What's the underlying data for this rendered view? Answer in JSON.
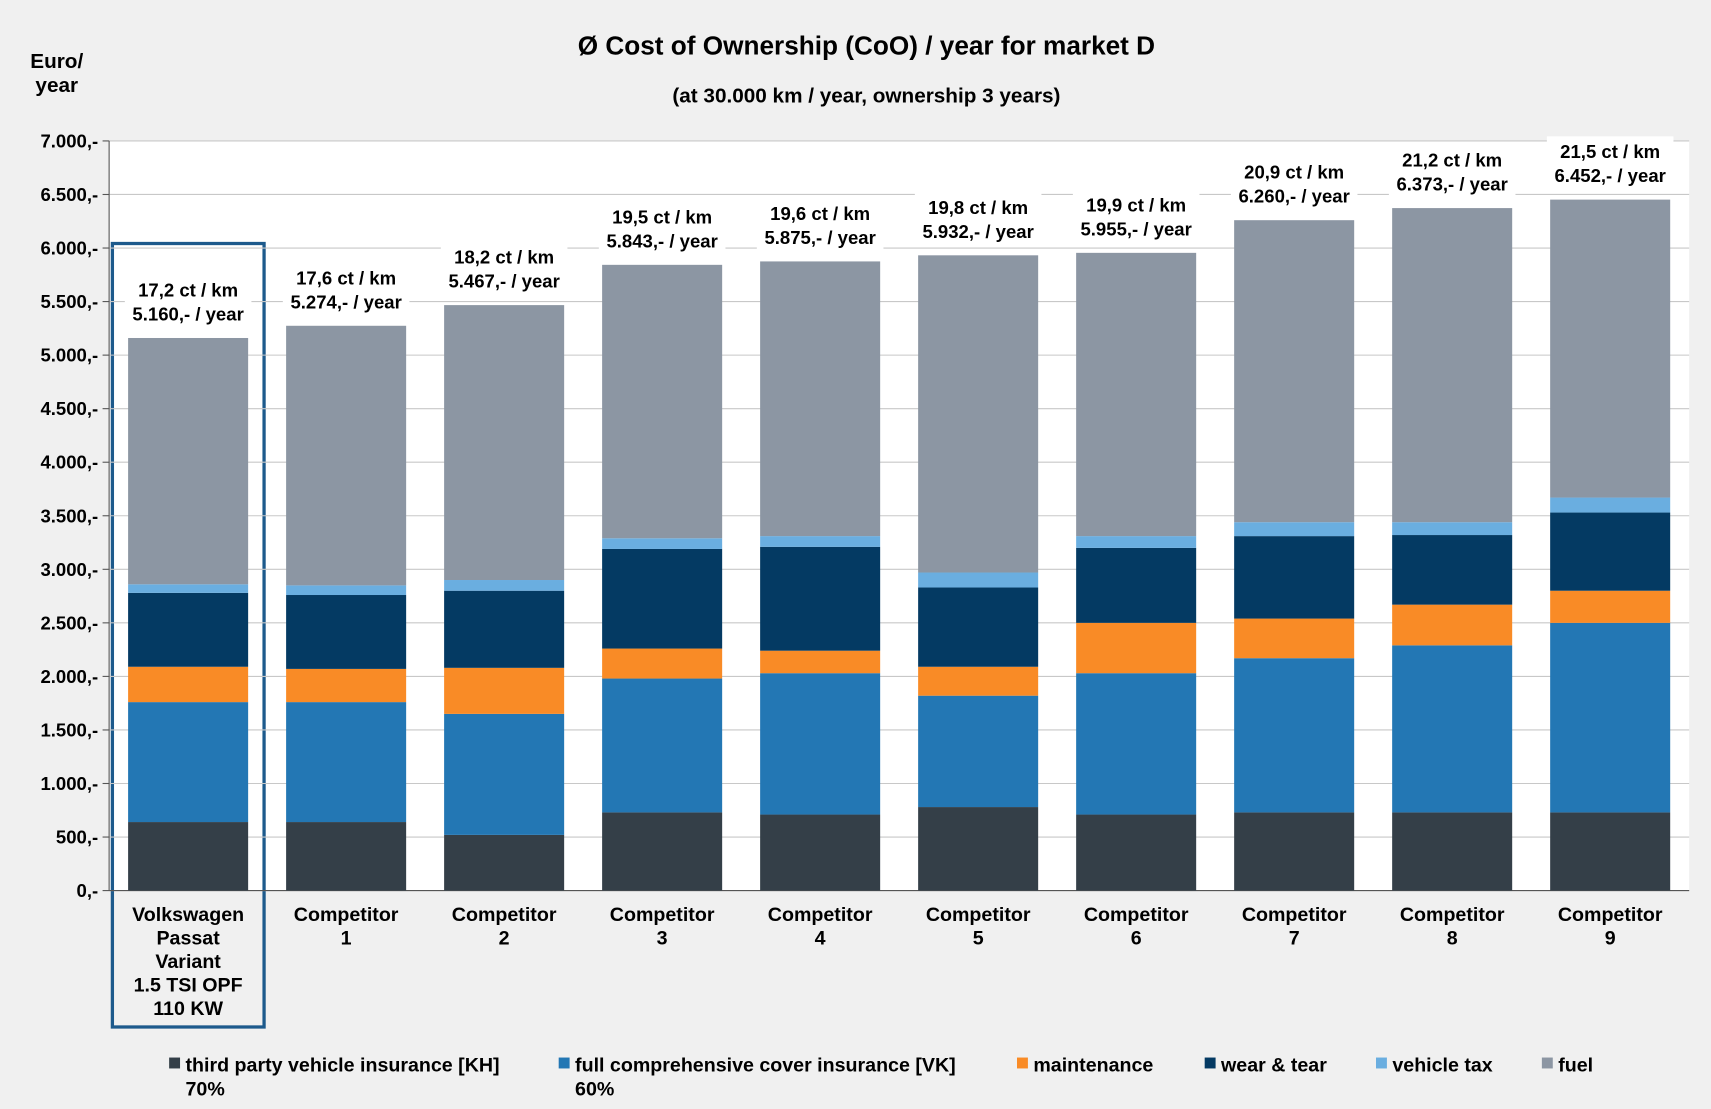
{
  "chart_data": {
    "type": "stacked_bar",
    "title": "Ø Cost of Ownership (CoO) / year for market D",
    "subtitle": "(at 30.000 km / year, ownership 3 years)",
    "y_label": "Euro/\nyear",
    "categories": [
      "Volkswagen\nPassat\nVariant\n1.5 TSI OPF\n110 KW",
      "Competitor\n1",
      "Competitor\n2",
      "Competitor\n3",
      "Competitor\n4",
      "Competitor\n5",
      "Competitor\n6",
      "Competitor\n7",
      "Competitor\n8",
      "Competitor\n9"
    ],
    "series": [
      {
        "name": "third party vehicle insurance [KH]\n70%",
        "color": "#343f48",
        "values": [
          640,
          640,
          520,
          730,
          710,
          780,
          710,
          730,
          730,
          730
        ]
      },
      {
        "name": "full comprehensive cover insurance [VK]\n60%",
        "color": "#2377b4",
        "values": [
          1120,
          1120,
          1130,
          1250,
          1320,
          1040,
          1320,
          1440,
          1560,
          1770
        ]
      },
      {
        "name": "maintenance",
        "color": "#f98b26",
        "values": [
          330,
          310,
          430,
          280,
          210,
          270,
          470,
          370,
          380,
          300
        ]
      },
      {
        "name": "wear & tear",
        "color": "#043a63",
        "values": [
          690,
          690,
          720,
          930,
          970,
          740,
          700,
          770,
          650,
          730
        ]
      },
      {
        "name": "vehicle tax",
        "color": "#6aaee0",
        "values": [
          80,
          90,
          100,
          100,
          100,
          140,
          110,
          130,
          120,
          140
        ]
      },
      {
        "name": "fuel",
        "color": "#8c96a3",
        "values": [
          2300,
          2424,
          2567,
          2553,
          2565,
          2962,
          2645,
          2820,
          2933,
          2782
        ]
      }
    ],
    "totals": [
      5160,
      5274,
      5467,
      5843,
      5875,
      5932,
      5955,
      6260,
      6373,
      6452
    ],
    "total_labels": [
      "5.160,-  / year",
      "5.274,-  / year",
      "5.467,-  / year",
      "5.843,-  / year",
      "5.875,-  / year",
      "5.932,-  / year",
      "5.955,-  / year",
      "6.260,-  / year",
      "6.373,-  / year",
      "6.452,-  / year"
    ],
    "per_km": [
      17.2,
      17.6,
      18.2,
      19.5,
      19.6,
      19.8,
      19.9,
      20.9,
      21.2,
      21.5
    ],
    "per_km_labels": [
      "17,2 ct / km",
      "17,6 ct / km",
      "18,2 ct / km",
      "19,5 ct / km",
      "19,6 ct / km",
      "19,8 ct / km",
      "19,9 ct / km",
      "20,9 ct / km",
      "21,2 ct / km",
      "21,5 ct / km"
    ],
    "ylim": [
      0,
      7000
    ],
    "yticks": [
      {
        "value": 0,
        "label": "0,-"
      },
      {
        "value": 500,
        "label": "500,-"
      },
      {
        "value": 1000,
        "label": "1.000,-"
      },
      {
        "value": 1500,
        "label": "1.500,-"
      },
      {
        "value": 2000,
        "label": "2.000,-"
      },
      {
        "value": 2500,
        "label": "2.500,-"
      },
      {
        "value": 3000,
        "label": "3.000,-"
      },
      {
        "value": 3500,
        "label": "3.500,-"
      },
      {
        "value": 4000,
        "label": "4.000,-"
      },
      {
        "value": 4500,
        "label": "4.500,-"
      },
      {
        "value": 5000,
        "label": "5.000,-"
      },
      {
        "value": 5500,
        "label": "5.500,-"
      },
      {
        "value": 6000,
        "label": "6.000,-"
      },
      {
        "value": 6500,
        "label": "6.500,-"
      },
      {
        "value": 7000,
        "label": "7.000,-"
      }
    ],
    "grid": true
  }
}
